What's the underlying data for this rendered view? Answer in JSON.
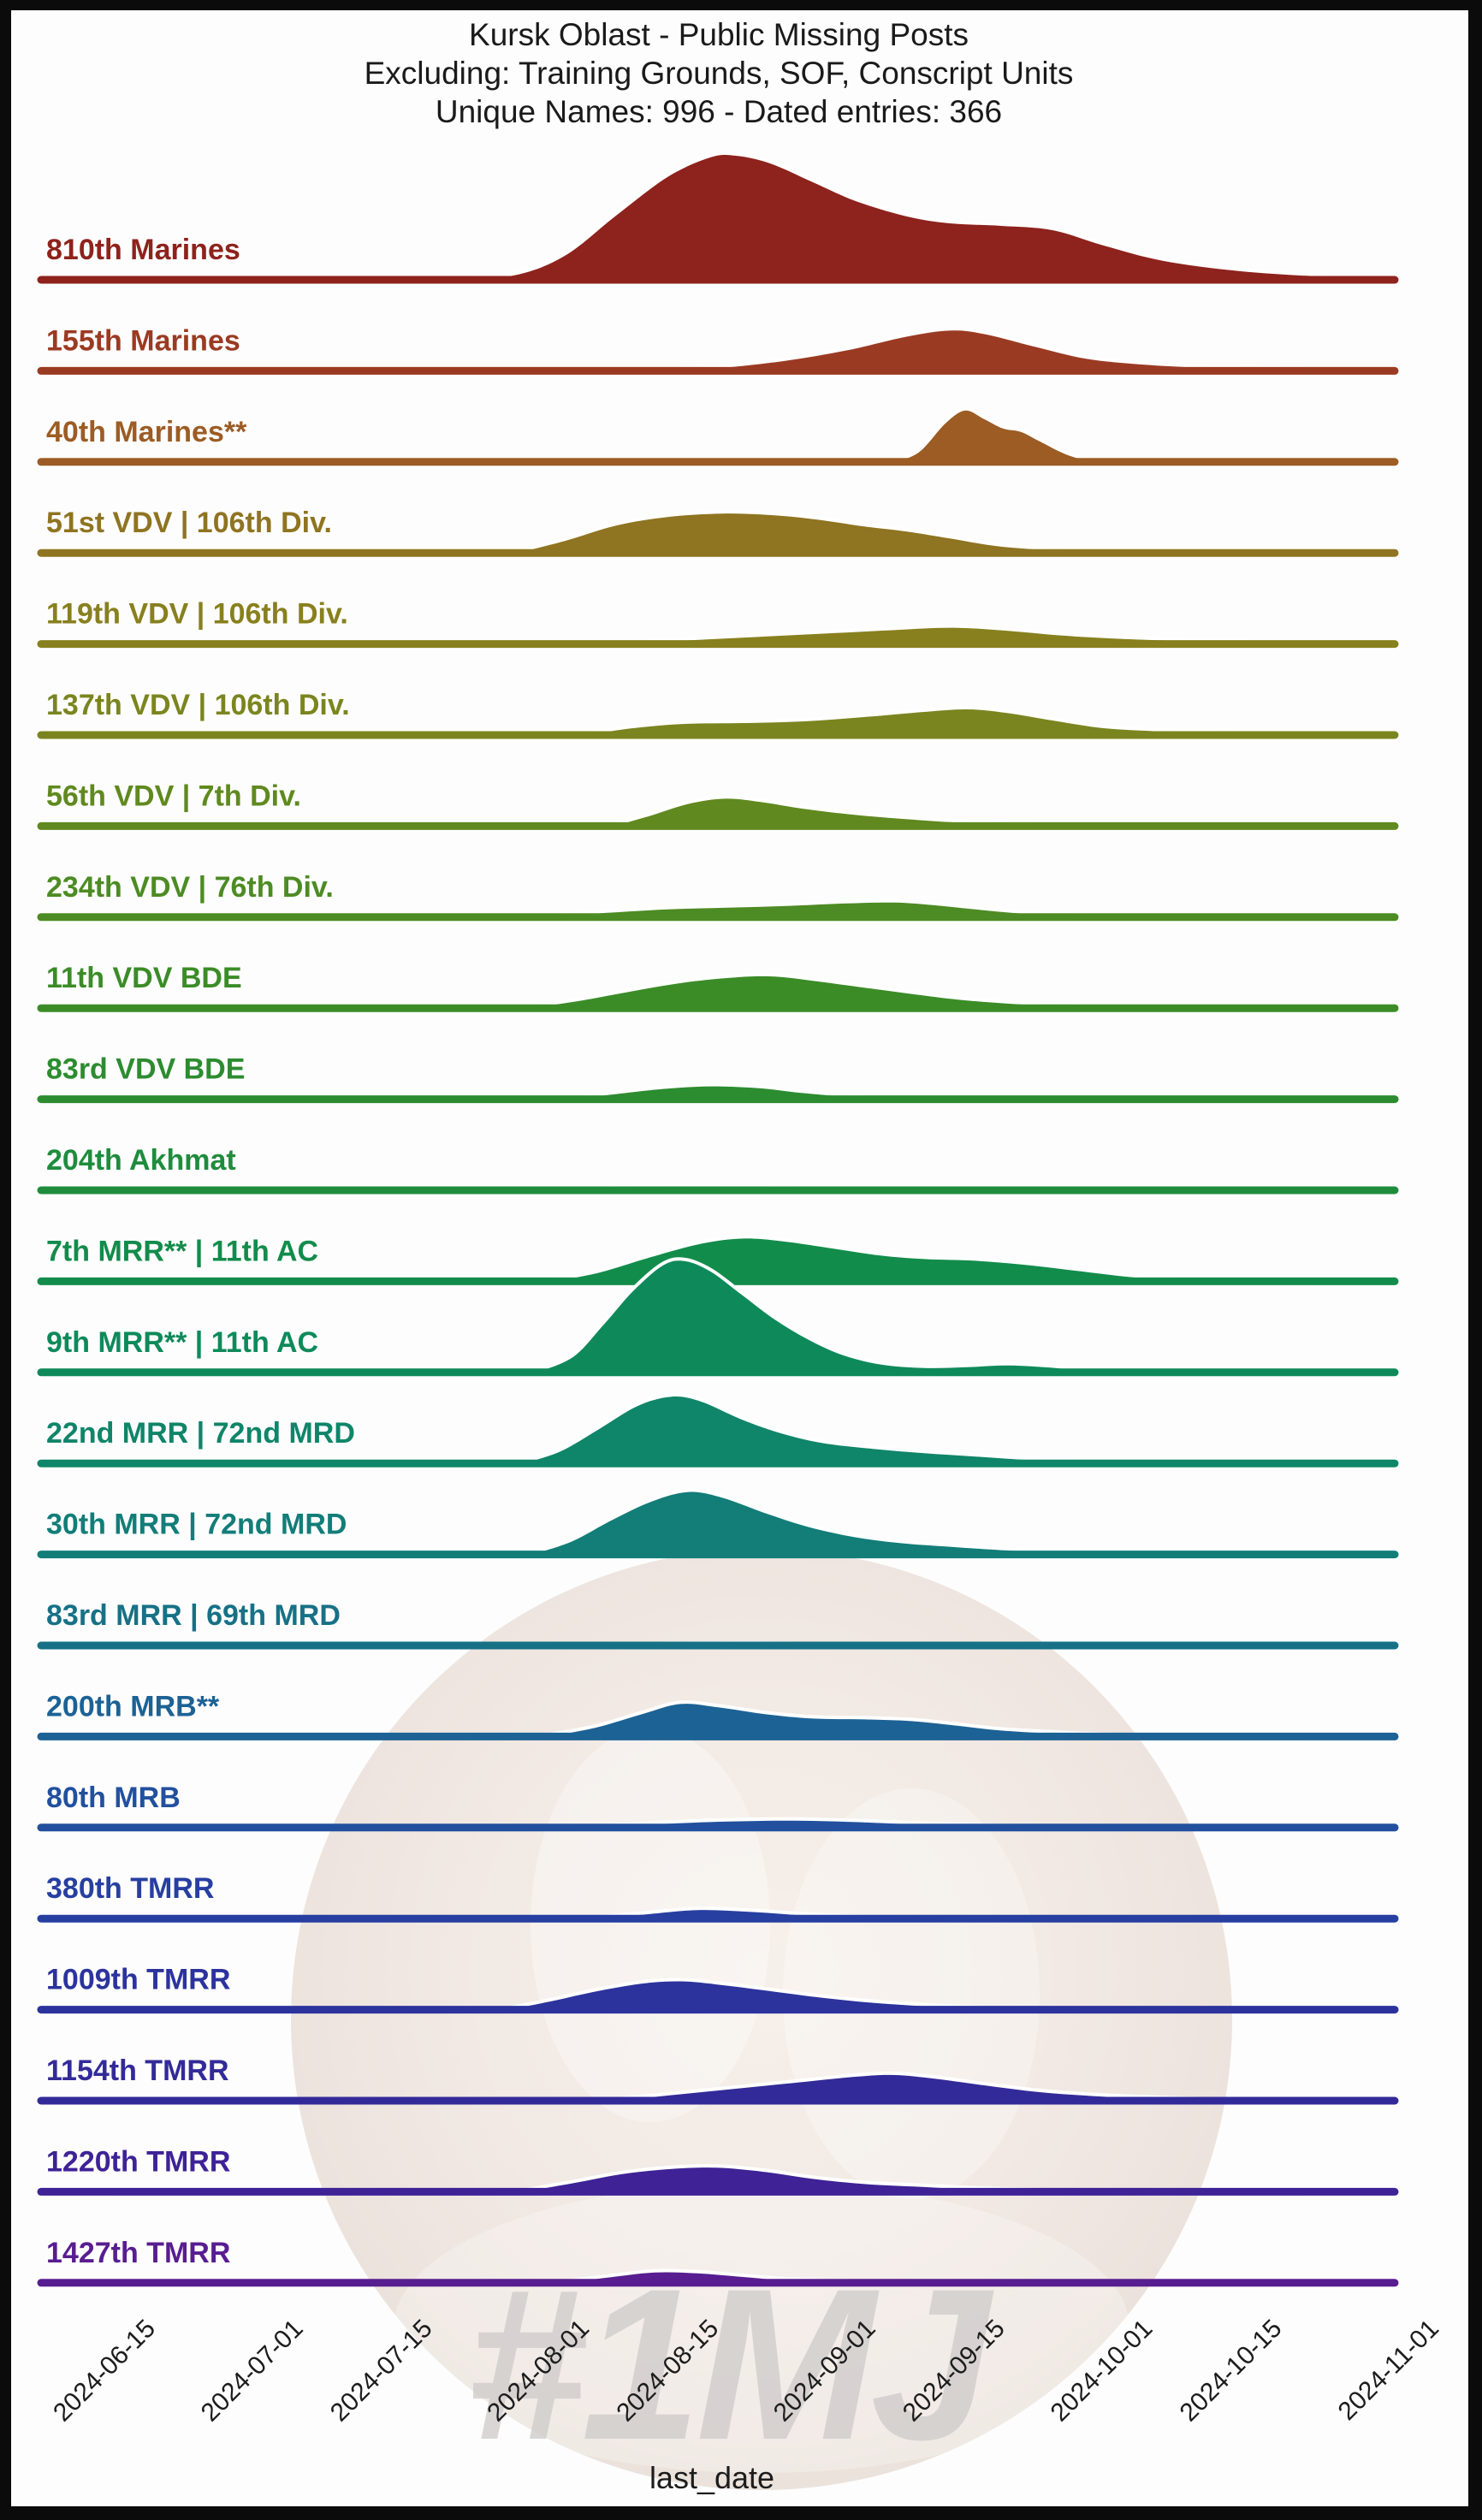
{
  "title": {
    "line1": "Kursk Oblast - Public Missing Posts",
    "line2": "Excluding: Training Grounds, SOF, Conscript Units",
    "line3": "Unique Names: 996 - Dated entries: 366"
  },
  "watermark": {
    "hashtag": "#1MJ"
  },
  "chart_data": {
    "type": "area",
    "variant": "ridgeline-joyplot",
    "x_axis_label": "last_date",
    "grid": false,
    "legend": "none (row labels on left)",
    "x_ticks": [
      "2024-06-15",
      "2024-07-01",
      "2024-07-15",
      "2024-08-01",
      "2024-08-15",
      "2024-09-01",
      "2024-09-15",
      "2024-10-01",
      "2024-10-15",
      "2024-11-01"
    ],
    "x_tick_day_offsets": [
      0,
      16,
      30,
      47,
      61,
      78,
      92,
      108,
      122,
      139
    ],
    "series": [
      {
        "name": "810th Marines",
        "color": "#8e221c",
        "points": [
          [
            525,
            0
          ],
          [
            600,
            5
          ],
          [
            660,
            28
          ],
          [
            720,
            75
          ],
          [
            780,
            120
          ],
          [
            830,
            143
          ],
          [
            860,
            145
          ],
          [
            900,
            136
          ],
          [
            950,
            114
          ],
          [
            1000,
            92
          ],
          [
            1060,
            74
          ],
          [
            1110,
            66
          ],
          [
            1170,
            63
          ],
          [
            1230,
            58
          ],
          [
            1290,
            40
          ],
          [
            1360,
            22
          ],
          [
            1450,
            10
          ],
          [
            1540,
            4
          ],
          [
            1620,
            1
          ],
          [
            1628,
            0
          ]
        ]
      },
      {
        "name": "155th Marines",
        "color": "#9b3a22",
        "points": [
          [
            790,
            0
          ],
          [
            850,
            4
          ],
          [
            920,
            12
          ],
          [
            990,
            24
          ],
          [
            1060,
            40
          ],
          [
            1110,
            47
          ],
          [
            1150,
            43
          ],
          [
            1210,
            28
          ],
          [
            1270,
            14
          ],
          [
            1340,
            7
          ],
          [
            1420,
            3
          ],
          [
            1500,
            1
          ],
          [
            1560,
            0
          ]
        ]
      },
      {
        "name": "40th Marines**",
        "color": "#9c5c24",
        "points": [
          [
            1048,
            0
          ],
          [
            1075,
            12
          ],
          [
            1105,
            45
          ],
          [
            1128,
            60
          ],
          [
            1150,
            50
          ],
          [
            1172,
            39
          ],
          [
            1193,
            35
          ],
          [
            1215,
            24
          ],
          [
            1245,
            9
          ],
          [
            1272,
            1
          ],
          [
            1290,
            0
          ]
        ]
      },
      {
        "name": "51st VDV | 106th Div.",
        "color": "#8f7421",
        "points": [
          [
            605,
            0
          ],
          [
            660,
            14
          ],
          [
            720,
            32
          ],
          [
            780,
            42
          ],
          [
            845,
            46
          ],
          [
            905,
            44
          ],
          [
            955,
            39
          ],
          [
            1010,
            31
          ],
          [
            1060,
            25
          ],
          [
            1110,
            17
          ],
          [
            1165,
            8
          ],
          [
            1230,
            3
          ],
          [
            1300,
            0
          ]
        ]
      },
      {
        "name": "119th VDV | 106th Div.",
        "color": "#88801e",
        "points": [
          [
            730,
            0
          ],
          [
            800,
            4
          ],
          [
            880,
            8
          ],
          [
            960,
            12
          ],
          [
            1040,
            16
          ],
          [
            1110,
            19
          ],
          [
            1170,
            16
          ],
          [
            1240,
            10
          ],
          [
            1310,
            6
          ],
          [
            1400,
            3
          ],
          [
            1480,
            1
          ],
          [
            1540,
            0
          ]
        ]
      },
      {
        "name": "137th VDV | 106th Div.",
        "color": "#7b851f",
        "points": [
          [
            685,
            0
          ],
          [
            740,
            8
          ],
          [
            800,
            13
          ],
          [
            870,
            14
          ],
          [
            940,
            16
          ],
          [
            1010,
            21
          ],
          [
            1080,
            27
          ],
          [
            1130,
            30
          ],
          [
            1175,
            26
          ],
          [
            1230,
            17
          ],
          [
            1290,
            8
          ],
          [
            1360,
            4
          ],
          [
            1440,
            1
          ],
          [
            1500,
            0
          ]
        ]
      },
      {
        "name": "56th VDV | 7th Div.",
        "color": "#60891f",
        "points": [
          [
            718,
            0
          ],
          [
            760,
            12
          ],
          [
            805,
            26
          ],
          [
            848,
            32
          ],
          [
            890,
            28
          ],
          [
            940,
            20
          ],
          [
            1000,
            13
          ],
          [
            1060,
            8
          ],
          [
            1120,
            4
          ],
          [
            1190,
            1
          ],
          [
            1250,
            0
          ]
        ]
      },
      {
        "name": "234th VDV | 76th Div.",
        "color": "#4d8b24",
        "points": [
          [
            645,
            0
          ],
          [
            710,
            5
          ],
          [
            780,
            9
          ],
          [
            850,
            11
          ],
          [
            920,
            13
          ],
          [
            990,
            16
          ],
          [
            1045,
            17
          ],
          [
            1090,
            14
          ],
          [
            1140,
            9
          ],
          [
            1195,
            4
          ],
          [
            1250,
            1
          ],
          [
            1310,
            0
          ]
        ]
      },
      {
        "name": "11th VDV BDE",
        "color": "#3b8c27",
        "points": [
          [
            620,
            0
          ],
          [
            680,
            9
          ],
          [
            740,
            20
          ],
          [
            800,
            30
          ],
          [
            860,
            36
          ],
          [
            905,
            37
          ],
          [
            950,
            32
          ],
          [
            1010,
            24
          ],
          [
            1070,
            16
          ],
          [
            1130,
            9
          ],
          [
            1200,
            4
          ],
          [
            1280,
            0
          ]
        ]
      },
      {
        "name": "83rd VDV BDE",
        "color": "#2c8c30",
        "points": [
          [
            668,
            0
          ],
          [
            720,
            6
          ],
          [
            775,
            12
          ],
          [
            830,
            15
          ],
          [
            885,
            13
          ],
          [
            930,
            8
          ],
          [
            975,
            4
          ],
          [
            1020,
            1
          ],
          [
            1065,
            0
          ]
        ]
      },
      {
        "name": "204th Akhmat",
        "color": "#1f8c3d",
        "points": [
          [
            690,
            0
          ],
          [
            740,
            2
          ],
          [
            790,
            3
          ],
          [
            850,
            2
          ],
          [
            910,
            1
          ],
          [
            970,
            0
          ]
        ]
      },
      {
        "name": "7th MRR** | 11th AC",
        "color": "#128c4b",
        "points": [
          [
            648,
            0
          ],
          [
            700,
            10
          ],
          [
            760,
            28
          ],
          [
            820,
            44
          ],
          [
            870,
            50
          ],
          [
            920,
            46
          ],
          [
            975,
            38
          ],
          [
            1030,
            30
          ],
          [
            1080,
            26
          ],
          [
            1140,
            24
          ],
          [
            1200,
            19
          ],
          [
            1260,
            12
          ],
          [
            1320,
            5
          ],
          [
            1380,
            0
          ]
        ]
      },
      {
        "name": "9th MRR** | 11th AC",
        "color": "#0e8a5a",
        "points": [
          [
            628,
            0
          ],
          [
            670,
            18
          ],
          [
            705,
            55
          ],
          [
            740,
            95
          ],
          [
            775,
            125
          ],
          [
            800,
            130
          ],
          [
            830,
            118
          ],
          [
            865,
            92
          ],
          [
            905,
            62
          ],
          [
            945,
            38
          ],
          [
            985,
            20
          ],
          [
            1030,
            9
          ],
          [
            1080,
            5
          ],
          [
            1130,
            6
          ],
          [
            1175,
            8
          ],
          [
            1220,
            6
          ],
          [
            1270,
            2
          ],
          [
            1330,
            0
          ]
        ]
      },
      {
        "name": "22nd MRR | 72nd MRD",
        "color": "#0f8569",
        "points": [
          [
            612,
            0
          ],
          [
            655,
            14
          ],
          [
            700,
            40
          ],
          [
            745,
            67
          ],
          [
            785,
            78
          ],
          [
            820,
            72
          ],
          [
            865,
            52
          ],
          [
            910,
            36
          ],
          [
            960,
            24
          ],
          [
            1020,
            17
          ],
          [
            1080,
            12
          ],
          [
            1140,
            8
          ],
          [
            1200,
            4
          ],
          [
            1260,
            1
          ],
          [
            1310,
            0
          ]
        ]
      },
      {
        "name": "30th MRR | 72nd MRD",
        "color": "#137d78",
        "points": [
          [
            622,
            0
          ],
          [
            668,
            15
          ],
          [
            715,
            40
          ],
          [
            762,
            62
          ],
          [
            805,
            73
          ],
          [
            845,
            66
          ],
          [
            895,
            48
          ],
          [
            945,
            32
          ],
          [
            1000,
            20
          ],
          [
            1055,
            13
          ],
          [
            1110,
            9
          ],
          [
            1170,
            5
          ],
          [
            1240,
            2
          ],
          [
            1310,
            0
          ]
        ]
      },
      {
        "name": "83rd MRR | 69th MRD",
        "color": "#177186",
        "points": [
          [
            700,
            0
          ],
          [
            850,
            1
          ],
          [
            1000,
            0
          ]
        ]
      },
      {
        "name": "200th MRB**",
        "color": "#1c6295",
        "points": [
          [
            640,
            0
          ],
          [
            695,
            10
          ],
          [
            750,
            26
          ],
          [
            795,
            38
          ],
          [
            840,
            34
          ],
          [
            895,
            26
          ],
          [
            950,
            21
          ],
          [
            1010,
            20
          ],
          [
            1065,
            18
          ],
          [
            1115,
            13
          ],
          [
            1170,
            7
          ],
          [
            1240,
            3
          ],
          [
            1310,
            0
          ]
        ]
      },
      {
        "name": "80th MRB",
        "color": "#22509e",
        "points": [
          [
            695,
            0
          ],
          [
            770,
            4
          ],
          [
            850,
            7
          ],
          [
            930,
            8
          ],
          [
            1010,
            6
          ],
          [
            1080,
            3
          ],
          [
            1150,
            1
          ],
          [
            1220,
            0
          ]
        ]
      },
      {
        "name": "380th TMRR",
        "color": "#273fa0",
        "points": [
          [
            700,
            0
          ],
          [
            755,
            5
          ],
          [
            815,
            10
          ],
          [
            875,
            8
          ],
          [
            935,
            4
          ],
          [
            995,
            1
          ],
          [
            1050,
            0
          ]
        ]
      },
      {
        "name": "1009th TMRR",
        "color": "#2c339d",
        "points": [
          [
            595,
            0
          ],
          [
            645,
            10
          ],
          [
            700,
            22
          ],
          [
            755,
            31
          ],
          [
            800,
            33
          ],
          [
            850,
            28
          ],
          [
            905,
            21
          ],
          [
            960,
            14
          ],
          [
            1020,
            8
          ],
          [
            1080,
            4
          ],
          [
            1140,
            1
          ],
          [
            1190,
            0
          ]
        ]
      },
      {
        "name": "1154th TMRR",
        "color": "#332a99",
        "points": [
          [
            720,
            0
          ],
          [
            790,
            7
          ],
          [
            860,
            14
          ],
          [
            930,
            21
          ],
          [
            1000,
            28
          ],
          [
            1045,
            30
          ],
          [
            1090,
            26
          ],
          [
            1150,
            18
          ],
          [
            1215,
            10
          ],
          [
            1285,
            5
          ],
          [
            1355,
            2
          ],
          [
            1420,
            0
          ]
        ]
      },
      {
        "name": "1220th TMRR",
        "color": "#3e2296",
        "points": [
          [
            613,
            0
          ],
          [
            670,
            10
          ],
          [
            730,
            21
          ],
          [
            790,
            27
          ],
          [
            840,
            28
          ],
          [
            895,
            23
          ],
          [
            950,
            15
          ],
          [
            1010,
            9
          ],
          [
            1070,
            6
          ],
          [
            1130,
            3
          ],
          [
            1190,
            1
          ],
          [
            1250,
            0
          ]
        ]
      },
      {
        "name": "1427th TMRR",
        "color": "#581d90",
        "points": [
          [
            662,
            0
          ],
          [
            710,
            6
          ],
          [
            765,
            12
          ],
          [
            815,
            11
          ],
          [
            865,
            7
          ],
          [
            915,
            3
          ],
          [
            965,
            1
          ],
          [
            1020,
            0
          ]
        ]
      }
    ]
  }
}
